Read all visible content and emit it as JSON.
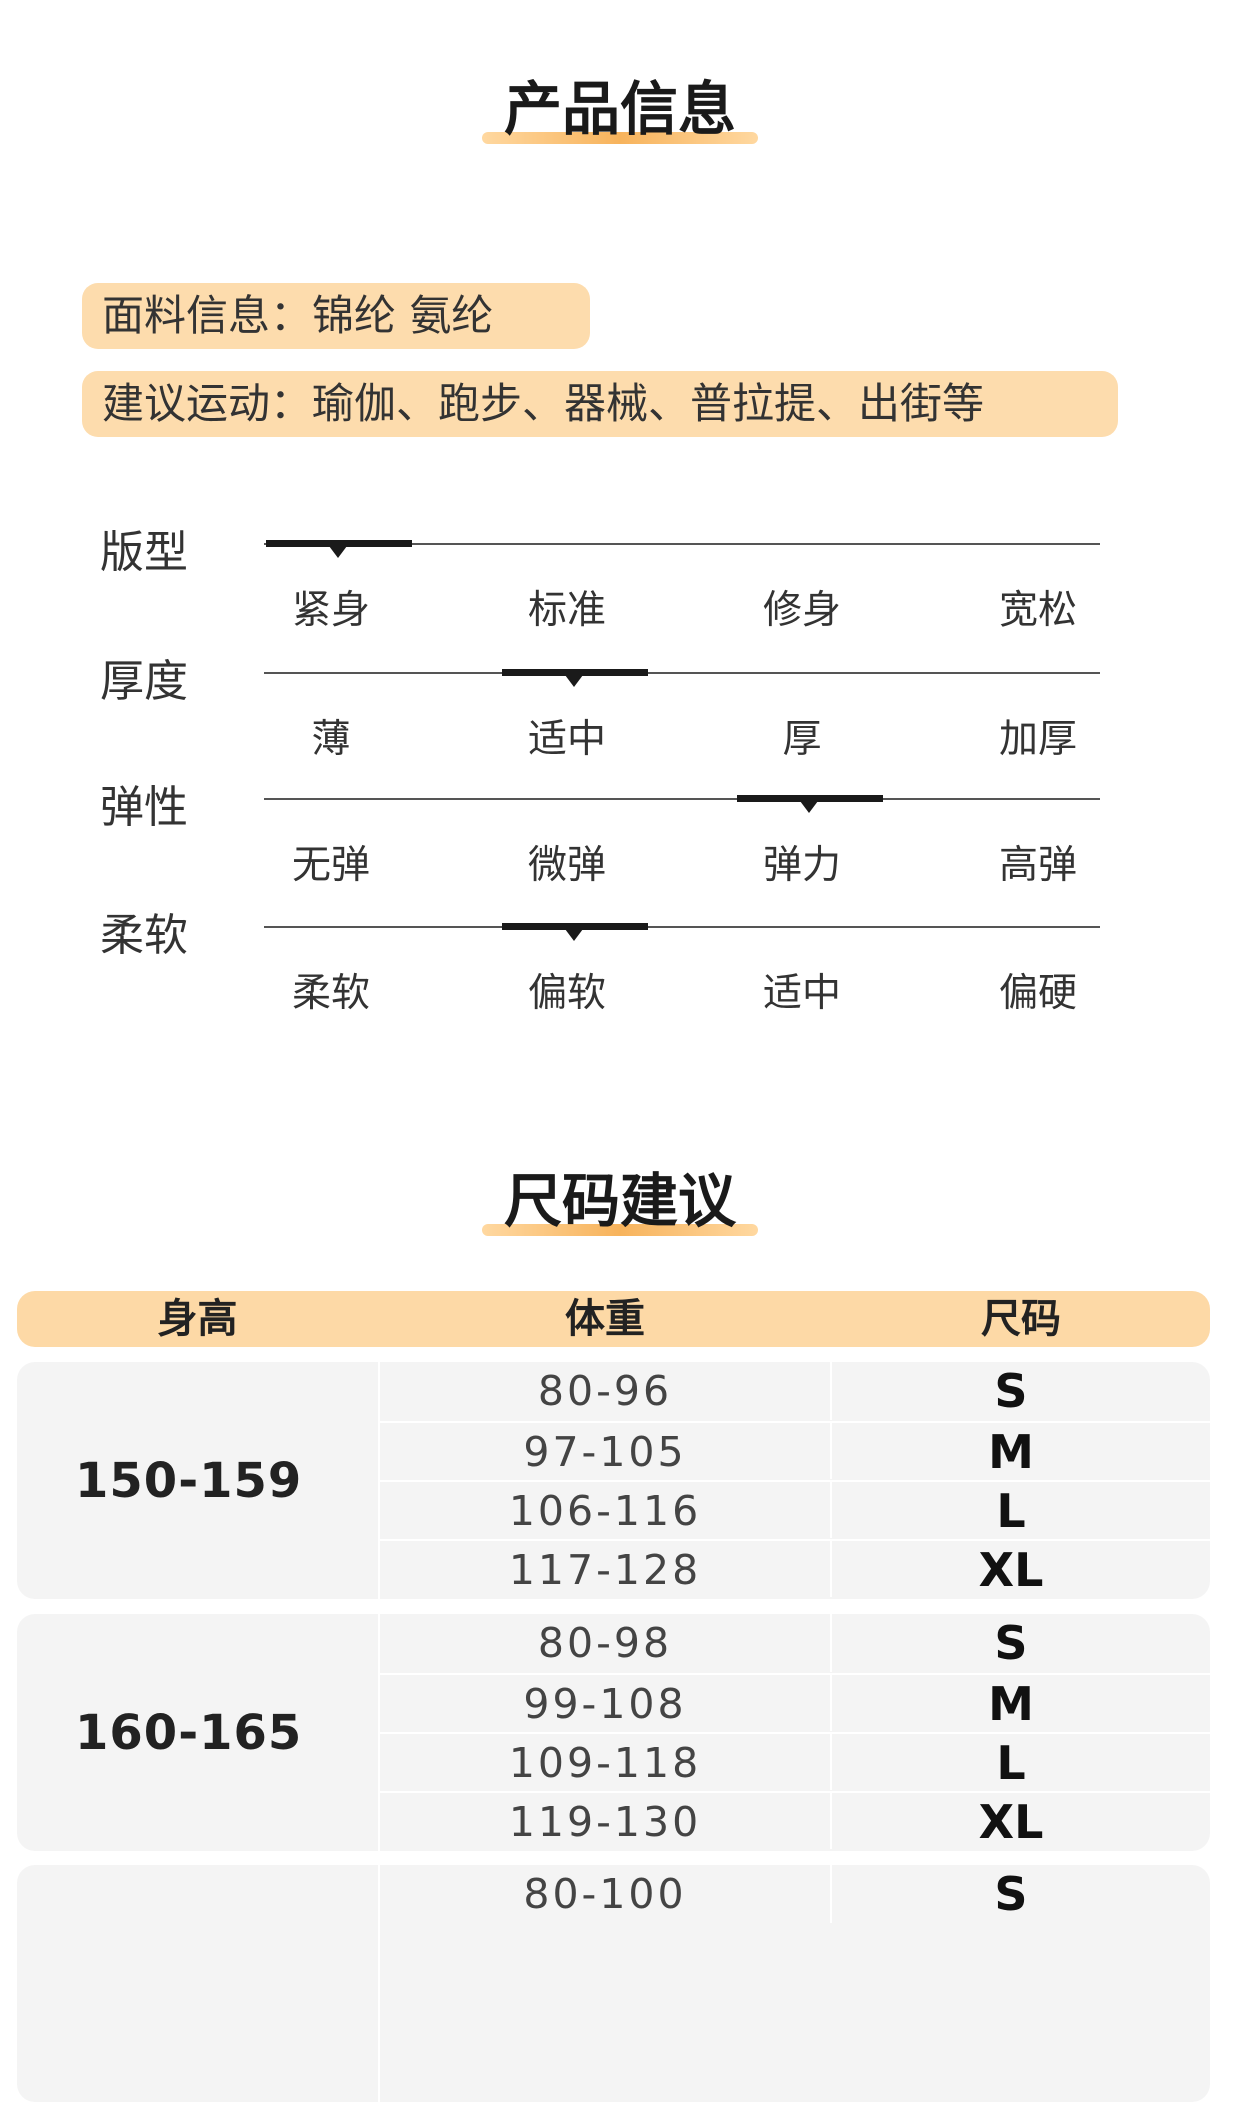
{
  "product_info": {
    "title": "产品信息",
    "fabric": "面料信息：锦纶 氨纶",
    "activities": "建议运动：瑜伽、跑步、器械、普拉提、出街等"
  },
  "scales": [
    {
      "label": "版型",
      "options": [
        "紧身",
        "标准",
        "修身",
        "宽松"
      ],
      "selected_index": 0
    },
    {
      "label": "厚度",
      "options": [
        "薄",
        "适中",
        "厚",
        "加厚"
      ],
      "selected_index": 1
    },
    {
      "label": "弹性",
      "options": [
        "无弹",
        "微弹",
        "弹力",
        "高弹"
      ],
      "selected_index": 2
    },
    {
      "label": "柔软",
      "options": [
        "柔软",
        "偏软",
        "适中",
        "偏硬"
      ],
      "selected_index": 1
    }
  ],
  "size_guide": {
    "title": "尺码建议",
    "headers": [
      "身高",
      "体重",
      "尺码"
    ],
    "groups": [
      {
        "height": "150-159",
        "rows": [
          [
            "80-96",
            "S"
          ],
          [
            "97-105",
            "M"
          ],
          [
            "106-116",
            "L"
          ],
          [
            "117-128",
            "XL"
          ]
        ]
      },
      {
        "height": "160-165",
        "rows": [
          [
            "80-98",
            "S"
          ],
          [
            "99-108",
            "M"
          ],
          [
            "109-118",
            "L"
          ],
          [
            "119-130",
            "XL"
          ]
        ]
      },
      {
        "height": "",
        "rows": [
          [
            "80-100",
            "S"
          ]
        ]
      }
    ]
  },
  "colors": {
    "accent": "#fddcad",
    "underline": "#f7b35c"
  }
}
